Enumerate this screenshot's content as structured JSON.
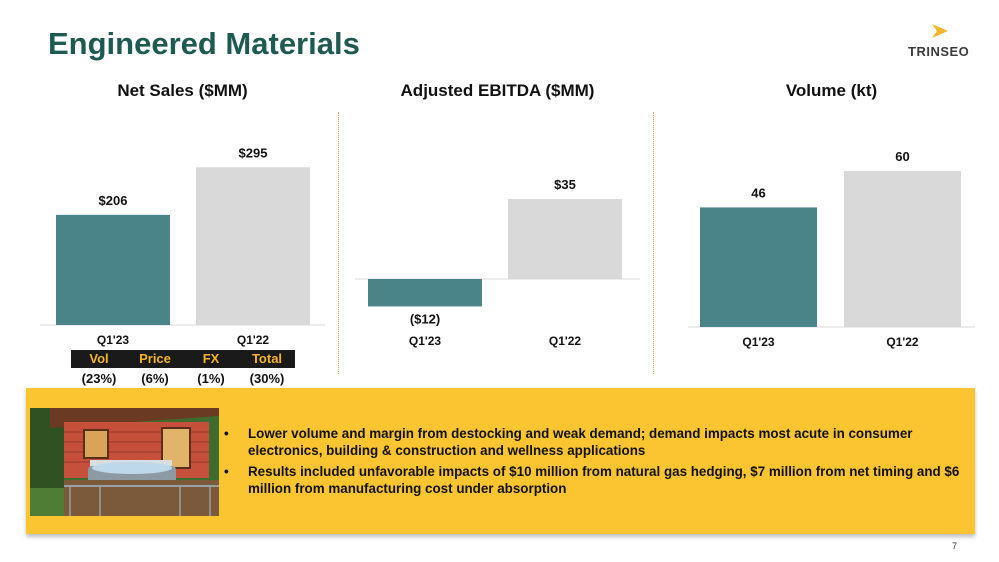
{
  "slide": {
    "title": "Engineered Materials",
    "page_number": "7"
  },
  "logo": {
    "text": "TRINSEO",
    "accent_color": "#f4b52a"
  },
  "colors": {
    "current": "#4a8388",
    "prior": "#d9d9d9",
    "callout_bg": "#fbc431",
    "bridge_bg": "#1a1a1a",
    "bridge_label": "#f4b52a"
  },
  "chart_data": [
    {
      "type": "bar",
      "title": "Net Sales ($MM)",
      "categories": [
        "Q1'23",
        "Q1'22"
      ],
      "values": [
        206,
        295
      ],
      "value_labels": [
        "$206",
        "$295"
      ],
      "ylim": [
        0,
        320
      ]
    },
    {
      "type": "bar",
      "title": "Adjusted EBITDA ($MM)",
      "categories": [
        "Q1'23",
        "Q1'22"
      ],
      "values": [
        -12,
        35
      ],
      "value_labels": [
        "($12)",
        "$35"
      ],
      "ylim": [
        -15,
        60
      ]
    },
    {
      "type": "bar",
      "title": "Volume (kt)",
      "categories": [
        "Q1'23",
        "Q1'22"
      ],
      "values": [
        46,
        60
      ],
      "value_labels": [
        "46",
        "60"
      ],
      "ylim": [
        0,
        75
      ]
    }
  ],
  "sales_bridge": {
    "headers": [
      "Vol",
      "Price",
      "FX",
      "Total"
    ],
    "values": [
      "(23%)",
      "(6%)",
      "(1%)",
      "(30%)"
    ]
  },
  "callout": {
    "bullets": [
      "Lower volume and margin from destocking and weak demand; demand impacts most acute in consumer electronics, building & construction and wellness applications",
      "Results included unfavorable impacts of $10 million from natural gas hedging, $7 million from net timing and $6 million from manufacturing cost under absorption"
    ]
  }
}
